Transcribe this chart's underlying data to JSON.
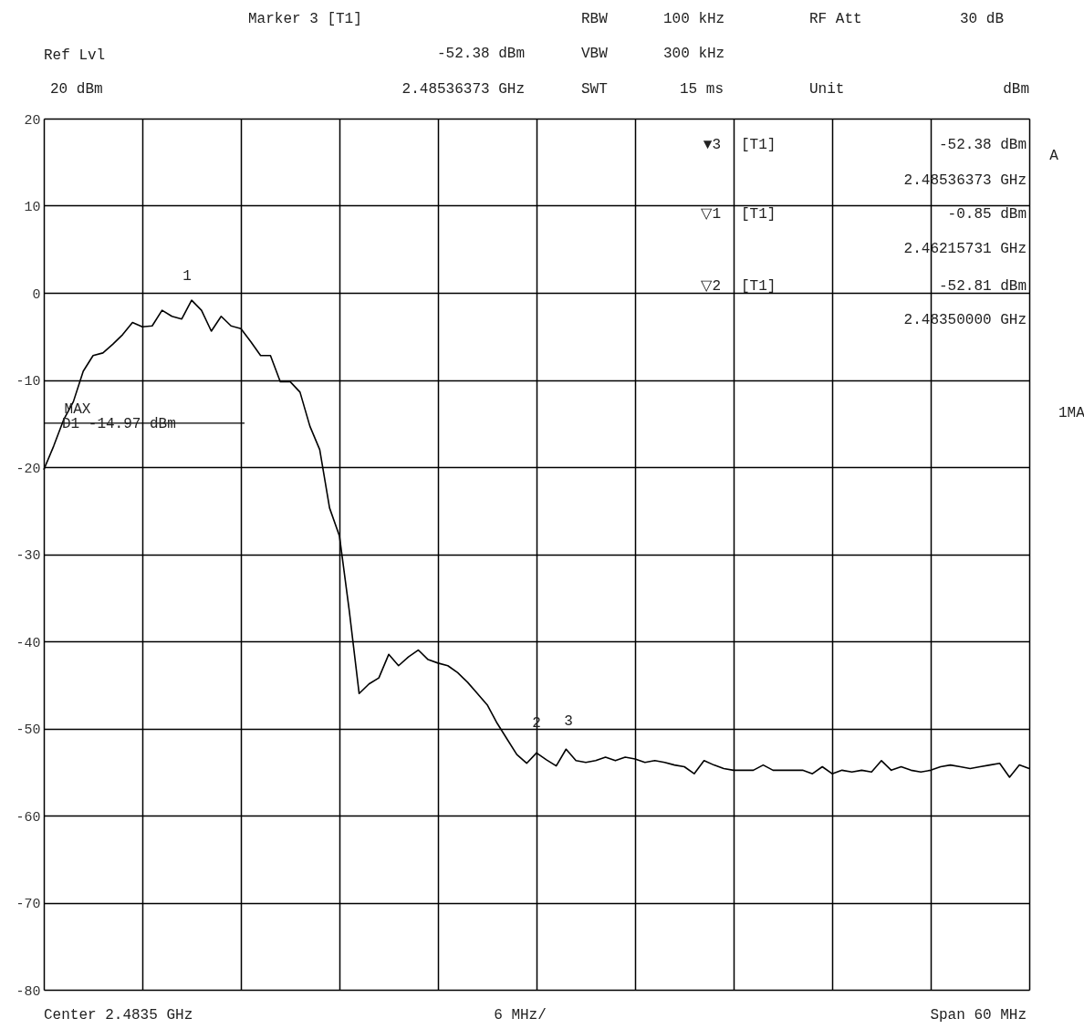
{
  "chart_data": {
    "type": "line",
    "categories": [
      null,
      null,
      null,
      null,
      null,
      null,
      null,
      null,
      null,
      null,
      null,
      null,
      null,
      null,
      null,
      null,
      null,
      null,
      null,
      null,
      null,
      null,
      null,
      null,
      null,
      null,
      null,
      null,
      null,
      null,
      null,
      null,
      null,
      null,
      null,
      null,
      null,
      null,
      null,
      null,
      null,
      null,
      null,
      null,
      null,
      null,
      null,
      null,
      null,
      null,
      null,
      null,
      null,
      null,
      null,
      null,
      null,
      null,
      null,
      null,
      null,
      null,
      null,
      null,
      null,
      null,
      null,
      null,
      null,
      null,
      null,
      null,
      null,
      null,
      null,
      null,
      null,
      null,
      null,
      null,
      null,
      null,
      null,
      null,
      null,
      null,
      null,
      null,
      null,
      null,
      null,
      null,
      null,
      null,
      null,
      null,
      null,
      null,
      null,
      null,
      null
    ],
    "series": [
      {
        "color": "#000000",
        "values": [
          -20.3,
          -17.6,
          -14.6,
          -12.5,
          -9.0,
          -7.2,
          -6.9,
          -5.9,
          -4.8,
          -3.4,
          -3.9,
          -3.8,
          -2.0,
          -2.7,
          -3.0,
          -0.85,
          -2.0,
          -4.4,
          -2.7,
          -3.8,
          -4.1,
          -5.6,
          -7.2,
          -7.2,
          -10.2,
          -10.2,
          -11.4,
          -15.3,
          -18.0,
          -24.7,
          -27.9,
          -36.5,
          -46.0,
          -44.9,
          -44.2,
          -41.5,
          -42.8,
          -41.8,
          -41.0,
          -42.1,
          -42.5,
          -42.8,
          -43.6,
          -44.7,
          -46.0,
          -47.3,
          -49.4,
          -51.2,
          -53.0,
          -54.0,
          -52.81,
          -53.6,
          -54.3,
          -52.38,
          -53.7,
          -53.9,
          -53.7,
          -53.3,
          -53.7,
          -53.3,
          -53.5,
          -53.9,
          -53.7,
          -53.9,
          -54.2,
          -54.4,
          -55.2,
          -53.7,
          -54.2,
          -54.6,
          -54.8,
          -54.8,
          -54.8,
          -54.2,
          -54.8,
          -54.8,
          -54.8,
          -54.8,
          -55.2,
          -54.4,
          -55.2,
          -54.8,
          -55.0,
          -54.8,
          -55.0,
          -53.7,
          -54.8,
          -54.4,
          -54.8,
          -55.0,
          -54.8,
          -54.4,
          -54.2,
          -54.4,
          -54.6,
          -54.4,
          -54.2,
          -54.0,
          -55.6,
          -54.2,
          -54.6
        ]
      }
    ],
    "ylim": [
      -80,
      20
    ],
    "yticks": [
      20,
      10,
      0,
      -10,
      -20,
      -30,
      -40,
      -50,
      -60,
      -70,
      -80
    ],
    "grid": true,
    "ref_lines": [
      {
        "axis": "y",
        "value": -14.97,
        "label": "D1 -14.97 dBm"
      }
    ],
    "annotations": [
      "Marker 3 [T1]",
      "Ref Lvl",
      "20 dBm",
      "-52.38 dBm",
      "2.48536373 GHz",
      "RBW",
      "100 kHz",
      "VBW",
      "300 kHz",
      "SWT",
      "15 ms",
      "RF Att",
      "30 dB",
      "Unit",
      "dBm",
      "▼3",
      "[T1]",
      "-52.38 dBm",
      "2.48536373 GHz",
      "▽1",
      "[T1]",
      "-0.85 dBm",
      "2.46215731 GHz",
      "▽2",
      "[T1]",
      "-52.81 dBm",
      "2.48350000 GHz",
      "A",
      "1MA",
      "MAX",
      "1",
      "2",
      "3",
      "Center 2.4835 GHz",
      "6 MHz/",
      "Span 60 MHz"
    ]
  }
}
